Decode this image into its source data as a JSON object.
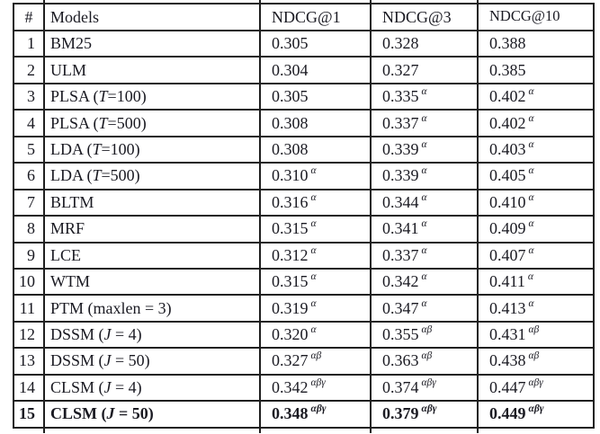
{
  "colors": {
    "text": "#1a1a22",
    "border": "#1f1f1f",
    "background": "#ffffff"
  },
  "table": {
    "columns": [
      "#",
      "Models",
      "NDCG@1",
      "NDCG@3",
      "NDCG@10"
    ],
    "rows": [
      {
        "num": "1",
        "model": {
          "pre": "BM25",
          "it": "",
          "post": ""
        },
        "ndcg1": {
          "v": "0.305",
          "s": ""
        },
        "ndcg3": {
          "v": "0.328",
          "s": ""
        },
        "ndcg10": {
          "v": "0.388",
          "s": ""
        },
        "bold": false
      },
      {
        "num": "2",
        "model": {
          "pre": "ULM",
          "it": "",
          "post": ""
        },
        "ndcg1": {
          "v": "0.304",
          "s": ""
        },
        "ndcg3": {
          "v": "0.327",
          "s": ""
        },
        "ndcg10": {
          "v": "0.385",
          "s": ""
        },
        "bold": false
      },
      {
        "num": "3",
        "model": {
          "pre": "PLSA (",
          "it": "T",
          "post": "=100)"
        },
        "ndcg1": {
          "v": "0.305",
          "s": ""
        },
        "ndcg3": {
          "v": "0.335",
          "s": "α"
        },
        "ndcg10": {
          "v": "0.402",
          "s": "α"
        },
        "bold": false
      },
      {
        "num": "4",
        "model": {
          "pre": "PLSA (",
          "it": "T",
          "post": "=500)"
        },
        "ndcg1": {
          "v": "0.308",
          "s": ""
        },
        "ndcg3": {
          "v": "0.337",
          "s": "α"
        },
        "ndcg10": {
          "v": "0.402",
          "s": "α"
        },
        "bold": false
      },
      {
        "num": "5",
        "model": {
          "pre": "LDA (",
          "it": "T",
          "post": "=100)"
        },
        "ndcg1": {
          "v": "0.308",
          "s": ""
        },
        "ndcg3": {
          "v": "0.339",
          "s": "α"
        },
        "ndcg10": {
          "v": "0.403",
          "s": "α"
        },
        "bold": false
      },
      {
        "num": "6",
        "model": {
          "pre": "LDA (",
          "it": "T",
          "post": "=500)"
        },
        "ndcg1": {
          "v": "0.310",
          "s": "α"
        },
        "ndcg3": {
          "v": "0.339",
          "s": "α"
        },
        "ndcg10": {
          "v": "0.405",
          "s": "α"
        },
        "bold": false
      },
      {
        "num": "7",
        "model": {
          "pre": "BLTM",
          "it": "",
          "post": ""
        },
        "ndcg1": {
          "v": "0.316",
          "s": "α"
        },
        "ndcg3": {
          "v": "0.344",
          "s": "α"
        },
        "ndcg10": {
          "v": "0.410",
          "s": "α"
        },
        "bold": false
      },
      {
        "num": "8",
        "model": {
          "pre": "MRF",
          "it": "",
          "post": ""
        },
        "ndcg1": {
          "v": "0.315",
          "s": "α"
        },
        "ndcg3": {
          "v": "0.341",
          "s": "α"
        },
        "ndcg10": {
          "v": "0.409",
          "s": "α"
        },
        "bold": false
      },
      {
        "num": "9",
        "model": {
          "pre": "LCE",
          "it": "",
          "post": ""
        },
        "ndcg1": {
          "v": "0.312",
          "s": "α"
        },
        "ndcg3": {
          "v": "0.337",
          "s": "α"
        },
        "ndcg10": {
          "v": "0.407",
          "s": "α"
        },
        "bold": false
      },
      {
        "num": "10",
        "model": {
          "pre": "WTM",
          "it": "",
          "post": ""
        },
        "ndcg1": {
          "v": "0.315",
          "s": "α"
        },
        "ndcg3": {
          "v": "0.342",
          "s": "α"
        },
        "ndcg10": {
          "v": "0.411",
          "s": "α"
        },
        "bold": false
      },
      {
        "num": "11",
        "model": {
          "pre": "PTM (maxlen = 3)",
          "it": "",
          "post": ""
        },
        "ndcg1": {
          "v": "0.319",
          "s": "α"
        },
        "ndcg3": {
          "v": "0.347",
          "s": "α"
        },
        "ndcg10": {
          "v": "0.413",
          "s": "α"
        },
        "bold": false
      },
      {
        "num": "12",
        "model": {
          "pre": "DSSM (",
          "it": "J",
          "post": " = 4)"
        },
        "ndcg1": {
          "v": "0.320",
          "s": "α"
        },
        "ndcg3": {
          "v": "0.355",
          "s": "αβ"
        },
        "ndcg10": {
          "v": "0.431",
          "s": "αβ"
        },
        "bold": false
      },
      {
        "num": "13",
        "model": {
          "pre": "DSSM (",
          "it": "J",
          "post": " = 50)"
        },
        "ndcg1": {
          "v": "0.327",
          "s": "αβ"
        },
        "ndcg3": {
          "v": "0.363",
          "s": "αβ"
        },
        "ndcg10": {
          "v": "0.438",
          "s": "αβ"
        },
        "bold": false
      },
      {
        "num": "14",
        "model": {
          "pre": "CLSM (",
          "it": "J",
          "post": " = 4)"
        },
        "ndcg1": {
          "v": "0.342",
          "s": "αβγ"
        },
        "ndcg3": {
          "v": "0.374",
          "s": "αβγ"
        },
        "ndcg10": {
          "v": "0.447",
          "s": "αβγ"
        },
        "bold": false
      },
      {
        "num": "15",
        "model": {
          "pre": "CLSM (",
          "it": "J",
          "post": " = 50)"
        },
        "ndcg1": {
          "v": "0.348",
          "s": "αβγ"
        },
        "ndcg3": {
          "v": "0.379",
          "s": "αβγ"
        },
        "ndcg10": {
          "v": "0.449",
          "s": "αβγ"
        },
        "bold": true
      }
    ]
  }
}
